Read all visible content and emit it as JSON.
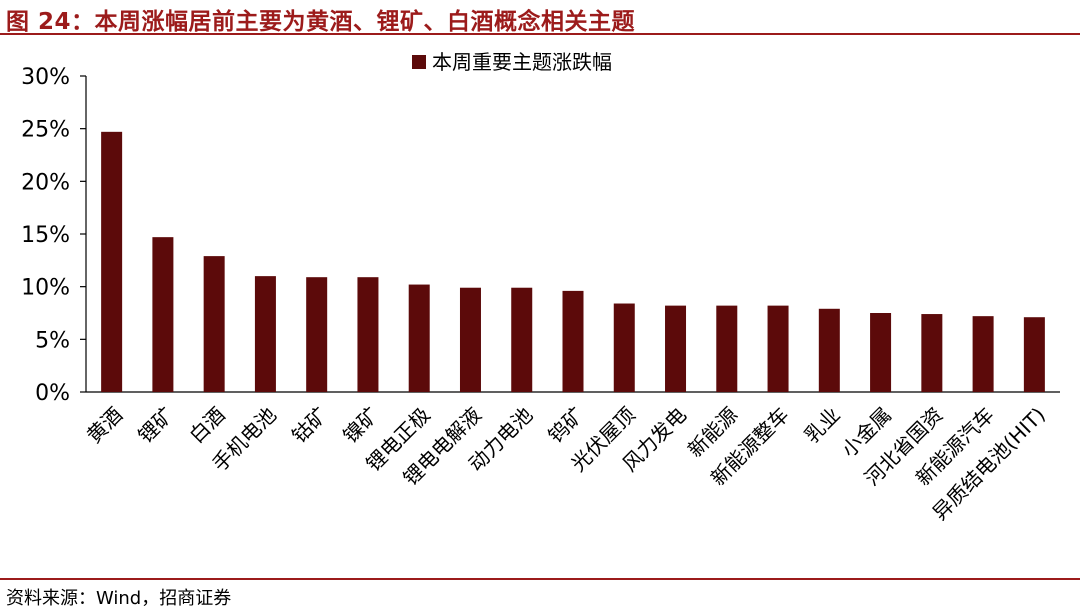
{
  "title": "图 24：本周涨幅居前主要为黄酒、锂矿、白酒概念相关主题",
  "source": "资料来源：Wind，招商证券",
  "colors": {
    "accent": "#9C1B1B",
    "bar": "#5C0A0A"
  },
  "chart_data": {
    "type": "bar",
    "title": "",
    "xlabel": "",
    "ylabel": "",
    "ylim": [
      0,
      30
    ],
    "yticks": [
      "0%",
      "5%",
      "10%",
      "15%",
      "20%",
      "25%",
      "30%"
    ],
    "legend": "top-center",
    "grid": false,
    "categories": [
      "黄酒",
      "锂矿",
      "白酒",
      "手机电池",
      "钴矿",
      "镍矿",
      "锂电正极",
      "锂电电解液",
      "动力电池",
      "钨矿",
      "光伏屋顶",
      "风力发电",
      "新能源",
      "新能源整车",
      "乳业",
      "小金属",
      "河北省国资",
      "新能源汽车",
      "异质结电池(HIT)"
    ],
    "series": [
      {
        "name": "本周重要主题涨跌幅",
        "values": [
          24.7,
          14.7,
          12.9,
          11.0,
          10.9,
          10.9,
          10.2,
          9.9,
          9.9,
          9.6,
          8.4,
          8.2,
          8.2,
          8.2,
          7.9,
          7.5,
          7.4,
          7.2,
          7.1
        ]
      }
    ]
  }
}
